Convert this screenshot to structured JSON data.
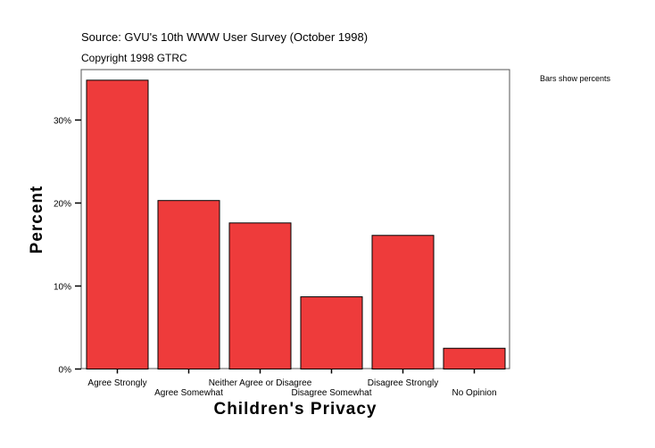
{
  "chart_data": {
    "type": "bar",
    "source": "Source: GVU's 10th WWW User Survey (October 1998)",
    "copyright": "Copyright 1998 GTRC",
    "note": "Bars show percents",
    "xlabel": "Children's Privacy",
    "ylabel": "Percent",
    "categories": [
      "Agree Strongly",
      "Agree Somewhat",
      "Neither Agree or Disagree",
      "Disagree Somewhat",
      "Disagree Strongly",
      "No Opinion"
    ],
    "values": [
      34.8,
      20.3,
      17.6,
      8.7,
      16.1,
      2.5
    ],
    "yticks": [
      0,
      10,
      20,
      30
    ],
    "ytick_labels": [
      "0%",
      "10%",
      "20%",
      "30%"
    ],
    "ylim": [
      0,
      36.2
    ],
    "grid": false,
    "bar_color": "#ee3b3b"
  }
}
